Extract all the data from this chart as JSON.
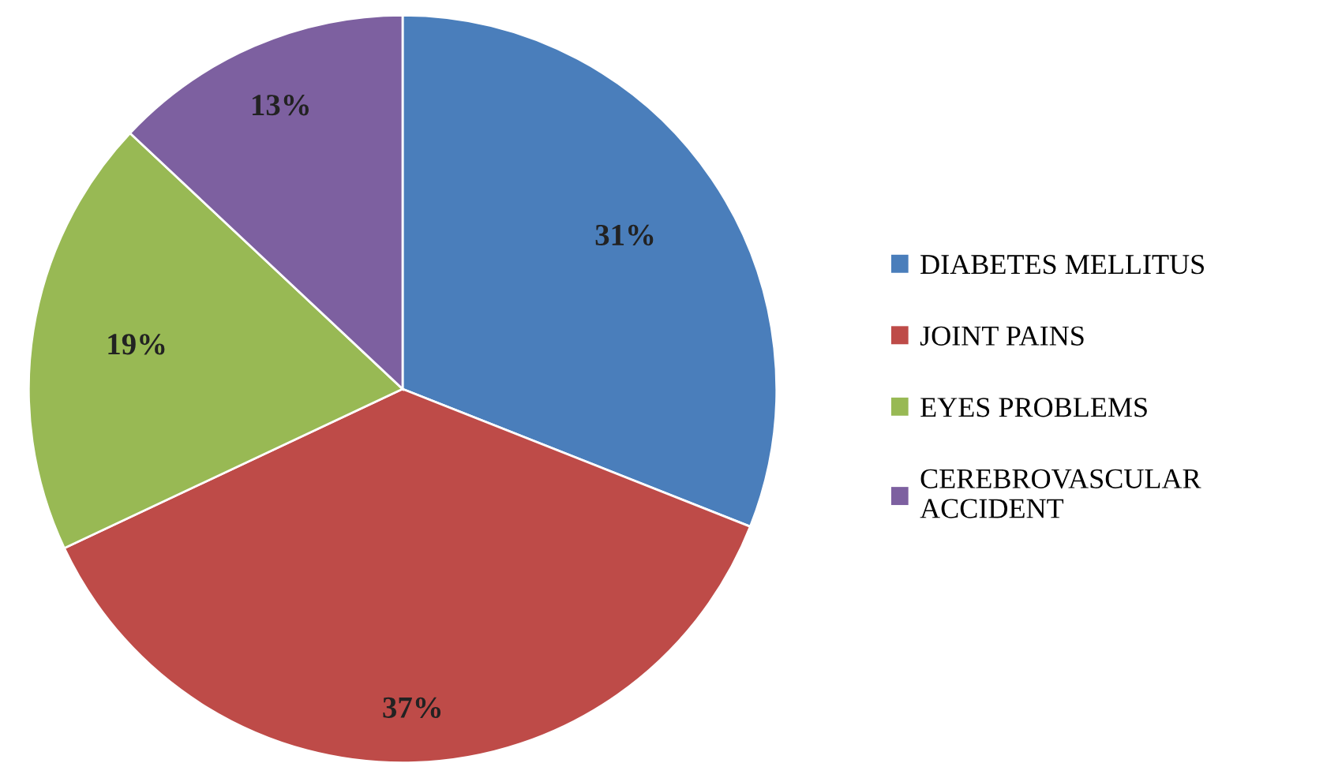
{
  "chart_data": {
    "type": "pie",
    "categories": [
      "DIABETES MELLITUS",
      "JOINT PAINS",
      "EYES PROBLEMS",
      "CEREBROVASCULAR ACCIDENT"
    ],
    "values": [
      31,
      37,
      19,
      13
    ],
    "colors": [
      "#4a7ebb",
      "#be4b48",
      "#98b954",
      "#7d60a0"
    ],
    "value_labels": [
      "31%",
      "37%",
      "19%",
      "13%"
    ],
    "legend": "right"
  }
}
